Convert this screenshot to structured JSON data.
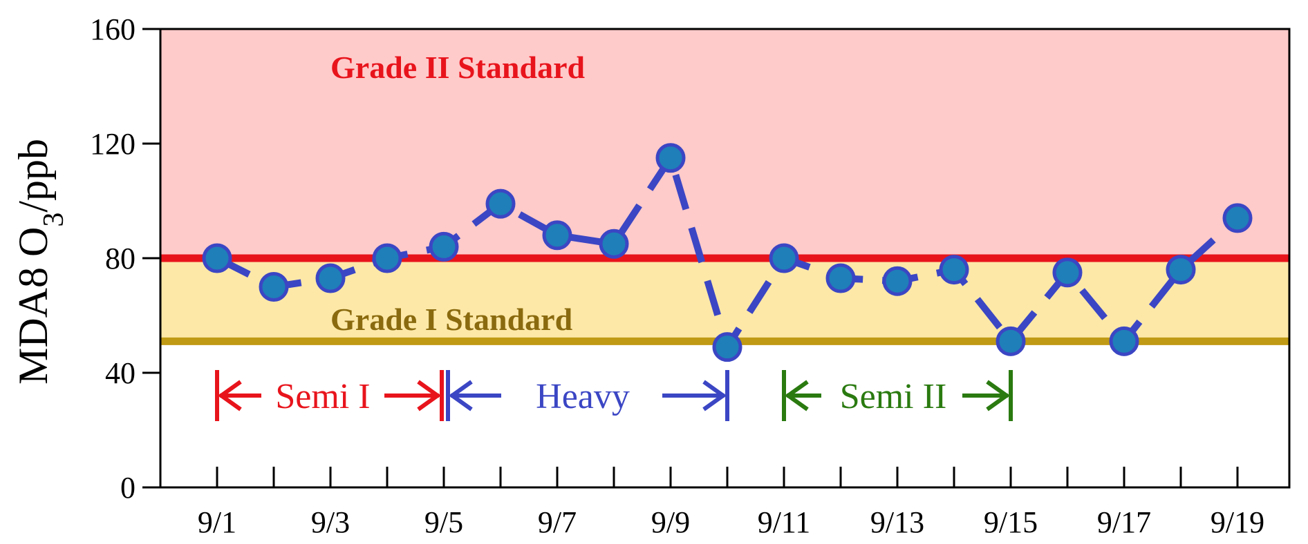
{
  "chart_data": {
    "type": "line",
    "title": "",
    "xlabel": "",
    "ylabel": {
      "prefix": "MDA8 O",
      "subscript": "3",
      "suffix": "/ppb"
    },
    "ylim": [
      0,
      160
    ],
    "yticks": [
      0,
      40,
      80,
      120,
      160
    ],
    "categories": [
      "9/1",
      "9/2",
      "9/3",
      "9/4",
      "9/5",
      "9/6",
      "9/7",
      "9/8",
      "9/9",
      "9/10",
      "9/11",
      "9/12",
      "9/13",
      "9/14",
      "9/15",
      "9/16",
      "9/17",
      "9/18",
      "9/19"
    ],
    "xtick_labels": [
      "9/1",
      "9/3",
      "9/5",
      "9/7",
      "9/9",
      "9/11",
      "9/13",
      "9/15",
      "9/17",
      "9/19"
    ],
    "series": [
      {
        "values": [
          80,
          70,
          73,
          80,
          84,
          99,
          88,
          85,
          115,
          49,
          80,
          73,
          72,
          76,
          51,
          75,
          51,
          76,
          94
        ],
        "color": "#3b46c4",
        "marker_color": "#1f7fb8"
      }
    ],
    "bands": [
      {
        "label": "Grade II Standard",
        "from": 80,
        "to": 160,
        "fill": "#ffcaca",
        "line_color": "#e8141c",
        "label_color": "#e8141c"
      },
      {
        "label": "Grade I Standard",
        "from": 51,
        "to": 80,
        "fill": "#fde8a8",
        "line_color": "#c09a14",
        "label_color": "#8a6a0e"
      }
    ],
    "periods": [
      {
        "label": "Semi I",
        "start": "9/1",
        "end": "9/5",
        "color": "#e8141c"
      },
      {
        "label": "Heavy",
        "start": "9/5",
        "end": "9/10",
        "color": "#3b46c4"
      },
      {
        "label": "Semi II",
        "start": "9/11",
        "end": "9/15",
        "color": "#2a7a10"
      }
    ],
    "grid": false,
    "legend": "none"
  }
}
